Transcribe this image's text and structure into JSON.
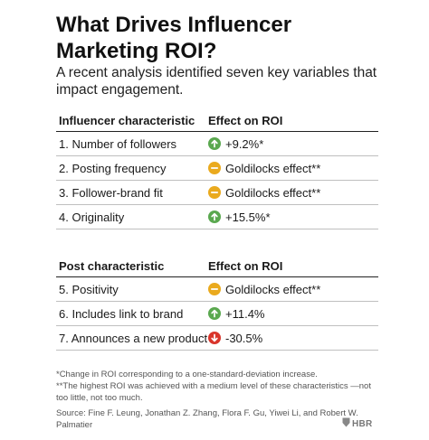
{
  "title": "What Drives Influencer Marketing ROI?",
  "subtitle": "A recent analysis identified seven key variables that impact engagement.",
  "colors": {
    "up": "#5aa84f",
    "neutral": "#eaaa1e",
    "down": "#d9352b"
  },
  "chart_data": {
    "type": "table",
    "sections": [
      {
        "header": [
          "Influencer characteristic",
          "Effect on ROI"
        ],
        "rows": [
          {
            "label": "1. Number of followers",
            "effect": "+9.2%*",
            "icon": "up-arrow-icon"
          },
          {
            "label": "2. Posting frequency",
            "effect": "Goldilocks effect**",
            "icon": "neutral-dash-icon"
          },
          {
            "label": "3. Follower-brand fit",
            "effect": "Goldilocks effect**",
            "icon": "neutral-dash-icon"
          },
          {
            "label": "4. Originality",
            "effect": "+15.5%*",
            "icon": "up-arrow-icon"
          }
        ]
      },
      {
        "header": [
          "Post characteristic",
          "Effect on ROI"
        ],
        "rows": [
          {
            "label": "5. Positivity",
            "effect": "Goldilocks effect**",
            "icon": "neutral-dash-icon"
          },
          {
            "label": "6. Includes link to brand",
            "effect": "+11.4%",
            "icon": "up-arrow-icon"
          },
          {
            "label": "7. Announces a new product",
            "effect": "-30.5%",
            "icon": "down-arrow-icon"
          }
        ]
      }
    ]
  },
  "notes": {
    "note1": "*Change in ROI corresponding to a one-standard-deviation increase.",
    "note2": "**The highest ROI was achieved with a medium level of these characteristics —not too little, not too much.",
    "source": "Source: Fine F. Leung, Jonathan Z. Zhang, Flora F. Gu, Yiwei Li, and Robert W. Palmatier"
  },
  "brand": "HBR"
}
